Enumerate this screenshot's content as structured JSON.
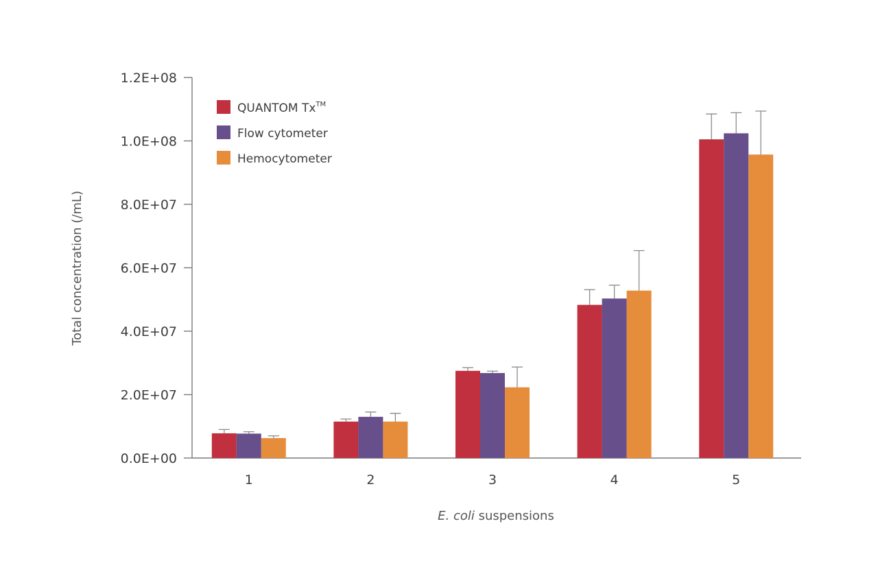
{
  "chart_data": {
    "type": "bar",
    "title": "",
    "xlabel_italic": "E. coli",
    "xlabel_rest": " suspensions",
    "ylabel": "Total concentration (/mL)",
    "categories": [
      "1",
      "2",
      "3",
      "4",
      "5"
    ],
    "ylim": [
      0,
      120000000
    ],
    "yticks": [
      0,
      20000000,
      40000000,
      60000000,
      80000000,
      100000000,
      120000000
    ],
    "ytick_labels": [
      "0.0E+00",
      "2.0E+07",
      "4.0E+07",
      "6.0E+07",
      "8.0E+07",
      "1.0E+08",
      "1.2E+08"
    ],
    "legend_position": "top-left",
    "grid": false,
    "series": [
      {
        "name": "QUANTOM Tx",
        "name_sup": "TM",
        "color": "#c0303e",
        "values": [
          7800000,
          11500000,
          27500000,
          48300000,
          100500000
        ],
        "errors": [
          1200000,
          800000,
          1000000,
          4800000,
          8000000
        ]
      },
      {
        "name": "Flow cytometer",
        "name_sup": "",
        "color": "#674f8c",
        "values": [
          7700000,
          13000000,
          26800000,
          50300000,
          102400000
        ],
        "errors": [
          600000,
          1500000,
          600000,
          4200000,
          6500000
        ]
      },
      {
        "name": "Hemocytometer",
        "name_sup": "",
        "color": "#e68d3c",
        "values": [
          6300000,
          11500000,
          22300000,
          52800000,
          95700000
        ],
        "errors": [
          700000,
          2600000,
          6400000,
          12600000,
          13700000
        ]
      }
    ]
  }
}
